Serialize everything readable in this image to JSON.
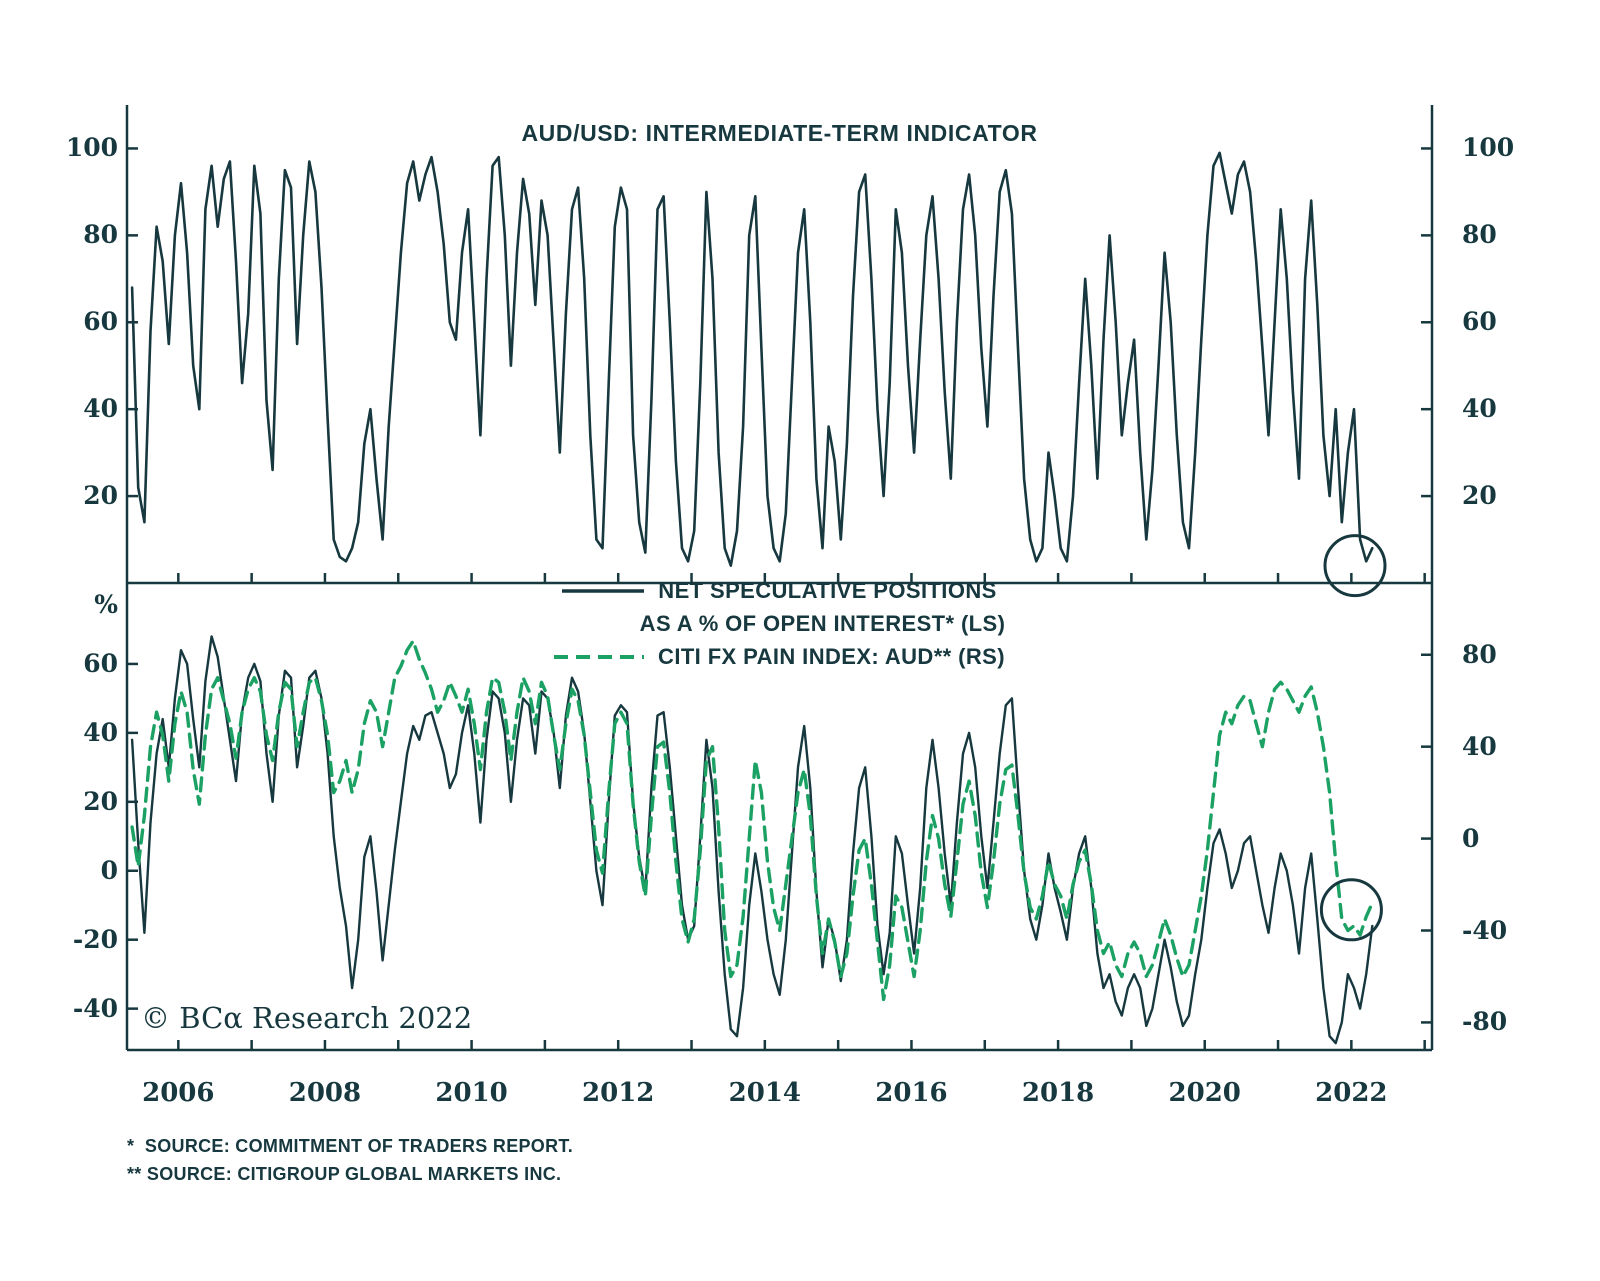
{
  "header": {
    "title": "AUD/USD: INTERMEDIATE-TERM INDICATOR"
  },
  "legend": {
    "row1": "NET SPECULATIVE POSITIONS",
    "row2": "AS A % OF OPEN INTEREST* (LS)",
    "row3": "CITI FX PAIN INDEX: AUD** (RS)"
  },
  "branding": {
    "copyright": "© BCα Research 2022"
  },
  "footnotes": {
    "line1": "*  SOURCE: COMMITMENT OF TRADERS REPORT.",
    "line2": "** SOURCE: CITIGROUP GLOBAL MARKETS INC."
  },
  "colors": {
    "dark": "#16383e",
    "green": "#1ba163"
  },
  "chart_data": [
    {
      "type": "line",
      "panel": "top",
      "title": "AUD/USD: INTERMEDIATE-TERM INDICATOR",
      "x_range": [
        2005.3,
        2023.1
      ],
      "x_ticks": [
        2006,
        2007,
        2008,
        2009,
        2010,
        2011,
        2012,
        2013,
        2014,
        2015,
        2016,
        2017,
        2018,
        2019,
        2020,
        2021,
        2022,
        2023
      ],
      "grid": false,
      "axes": {
        "left": {
          "ylim": [
            0,
            110
          ],
          "ticks": [
            20,
            40,
            60,
            80,
            100
          ]
        },
        "right": {
          "ylim": [
            0,
            110
          ],
          "ticks": [
            20,
            40,
            60,
            80,
            100
          ]
        }
      },
      "series": [
        {
          "name": "AUD/USD intermediate-term indicator",
          "axis": "left",
          "style": "solid",
          "color": "dark",
          "width": 2.6,
          "x_start": 2005.37,
          "x_step": 0.08333,
          "values": [
            68,
            22,
            14,
            58,
            82,
            74,
            55,
            80,
            92,
            76,
            50,
            40,
            86,
            96,
            82,
            93,
            97,
            74,
            46,
            62,
            96,
            85,
            42,
            26,
            70,
            95,
            91,
            55,
            80,
            97,
            90,
            68,
            38,
            10,
            6,
            5,
            8,
            14,
            32,
            40,
            24,
            10,
            36,
            56,
            76,
            92,
            97,
            88,
            94,
            98,
            90,
            78,
            60,
            56,
            76,
            86,
            60,
            34,
            70,
            96,
            98,
            80,
            50,
            76,
            93,
            85,
            64,
            88,
            80,
            55,
            30,
            62,
            86,
            91,
            70,
            34,
            10,
            8,
            46,
            82,
            91,
            86,
            34,
            14,
            7,
            42,
            86,
            89,
            60,
            28,
            8,
            5,
            12,
            46,
            90,
            70,
            30,
            8,
            4,
            12,
            36,
            80,
            89,
            54,
            20,
            8,
            5,
            16,
            46,
            76,
            86,
            60,
            24,
            8,
            36,
            28,
            10,
            32,
            66,
            90,
            94,
            70,
            40,
            20,
            46,
            86,
            76,
            50,
            30,
            56,
            80,
            89,
            70,
            44,
            24,
            60,
            86,
            94,
            80,
            54,
            36,
            66,
            90,
            95,
            85,
            54,
            24,
            10,
            5,
            8,
            30,
            20,
            8,
            5,
            20,
            46,
            70,
            50,
            24,
            56,
            80,
            60,
            34,
            46,
            56,
            30,
            10,
            26,
            50,
            76,
            60,
            34,
            14,
            8,
            30,
            56,
            80,
            96,
            99,
            92,
            85,
            94,
            97,
            90,
            74,
            54,
            34,
            60,
            86,
            70,
            44,
            24,
            70,
            88,
            64,
            34,
            20,
            40,
            14,
            30,
            40,
            10,
            5,
            8
          ]
        }
      ],
      "annotations": [
        {
          "type": "circle",
          "x": 2022.05,
          "y": 4,
          "axis": "left",
          "r": 30
        }
      ]
    },
    {
      "type": "line",
      "panel": "bottom",
      "x_range": [
        2005.3,
        2023.1
      ],
      "x_ticks": [
        2006,
        2007,
        2008,
        2009,
        2010,
        2011,
        2012,
        2013,
        2014,
        2015,
        2016,
        2017,
        2018,
        2019,
        2020,
        2021,
        2022,
        2023
      ],
      "x_tick_labels": [
        2006,
        2008,
        2010,
        2012,
        2014,
        2016,
        2018,
        2020,
        2022
      ],
      "grid": false,
      "axes": {
        "left": {
          "label": "%",
          "ylim": [
            -52,
            80
          ],
          "ticks": [
            60,
            40,
            20,
            0,
            -20,
            -40
          ]
        },
        "right": {
          "ylim": [
            -92,
            106
          ],
          "ticks": [
            80,
            40,
            0,
            -40,
            -80
          ]
        }
      },
      "series": [
        {
          "name": "NET SPECULATIVE POSITIONS AS A % OF OPEN INTEREST (LS)",
          "axis": "left",
          "style": "solid",
          "color": "dark",
          "width": 2.4,
          "x_start": 2005.37,
          "x_step": 0.08333,
          "values": [
            38,
            8,
            -18,
            14,
            34,
            44,
            30,
            50,
            64,
            60,
            44,
            30,
            55,
            68,
            62,
            50,
            38,
            26,
            46,
            56,
            60,
            55,
            34,
            20,
            45,
            58,
            56,
            30,
            42,
            56,
            58,
            50,
            34,
            10,
            -5,
            -16,
            -34,
            -20,
            4,
            10,
            -6,
            -26,
            -10,
            6,
            20,
            34,
            42,
            38,
            45,
            46,
            40,
            34,
            24,
            28,
            40,
            48,
            34,
            14,
            38,
            52,
            50,
            40,
            20,
            38,
            50,
            48,
            34,
            52,
            50,
            40,
            24,
            45,
            56,
            52,
            40,
            20,
            0,
            -10,
            20,
            45,
            48,
            46,
            20,
            4,
            -6,
            24,
            45,
            46,
            30,
            10,
            -10,
            -20,
            -16,
            10,
            38,
            24,
            -6,
            -30,
            -46,
            -48,
            -34,
            -10,
            5,
            -6,
            -20,
            -30,
            -36,
            -20,
            5,
            30,
            42,
            24,
            -6,
            -28,
            -14,
            -20,
            -32,
            -20,
            5,
            24,
            30,
            10,
            -16,
            -30,
            -18,
            10,
            5,
            -10,
            -24,
            -5,
            24,
            38,
            24,
            5,
            -10,
            14,
            34,
            40,
            30,
            10,
            -5,
            14,
            34,
            48,
            50,
            24,
            0,
            -14,
            -20,
            -10,
            5,
            -5,
            -12,
            -20,
            -5,
            5,
            10,
            -5,
            -24,
            -34,
            -30,
            -38,
            -42,
            -34,
            -30,
            -34,
            -45,
            -40,
            -30,
            -20,
            -28,
            -38,
            -45,
            -42,
            -30,
            -20,
            -5,
            8,
            12,
            5,
            -5,
            0,
            8,
            10,
            0,
            -10,
            -18,
            -5,
            5,
            0,
            -10,
            -24,
            -5,
            5,
            -14,
            -34,
            -48,
            -50,
            -44,
            -30,
            -34,
            -40,
            -30,
            -16
          ]
        },
        {
          "name": "CITI FX PAIN INDEX: AUD (RS)",
          "axis": "right",
          "style": "dashed",
          "color": "green",
          "width": 3.4,
          "x_start": 2005.37,
          "x_step": 0.08333,
          "values": [
            5,
            -12,
            10,
            40,
            55,
            45,
            25,
            50,
            64,
            55,
            30,
            15,
            45,
            65,
            70,
            60,
            50,
            35,
            55,
            65,
            70,
            64,
            45,
            34,
            55,
            68,
            65,
            40,
            55,
            68,
            70,
            60,
            45,
            20,
            25,
            34,
            20,
            30,
            50,
            60,
            55,
            40,
            55,
            70,
            75,
            82,
            86,
            78,
            72,
            65,
            55,
            60,
            68,
            62,
            55,
            65,
            50,
            30,
            55,
            70,
            68,
            55,
            34,
            55,
            70,
            64,
            50,
            68,
            62,
            45,
            30,
            50,
            65,
            60,
            45,
            20,
            -5,
            -15,
            20,
            50,
            55,
            50,
            15,
            -10,
            -25,
            10,
            40,
            42,
            20,
            -10,
            -35,
            -45,
            -35,
            -5,
            34,
            40,
            5,
            -40,
            -60,
            -55,
            -34,
            0,
            34,
            20,
            -10,
            -30,
            -40,
            -20,
            0,
            20,
            30,
            10,
            -25,
            -50,
            -35,
            -45,
            -60,
            -50,
            -25,
            -5,
            0,
            -20,
            -45,
            -70,
            -55,
            -25,
            -30,
            -45,
            -60,
            -40,
            -10,
            10,
            0,
            -20,
            -34,
            -10,
            15,
            25,
            10,
            -15,
            -30,
            -10,
            15,
            30,
            32,
            10,
            -15,
            -30,
            -35,
            -25,
            -10,
            -20,
            -25,
            -35,
            -20,
            -10,
            -5,
            -20,
            -40,
            -50,
            -45,
            -55,
            -60,
            -50,
            -45,
            -50,
            -60,
            -55,
            -45,
            -35,
            -42,
            -52,
            -60,
            -55,
            -40,
            -25,
            -5,
            20,
            45,
            55,
            50,
            58,
            62,
            60,
            50,
            40,
            55,
            65,
            68,
            65,
            60,
            55,
            62,
            66,
            55,
            40,
            20,
            -10,
            -35,
            -40,
            -38,
            -42,
            -34,
            -28
          ]
        }
      ],
      "annotations": [
        {
          "type": "circle",
          "x": 2022.0,
          "y": -31,
          "axis": "right",
          "r": 30
        }
      ]
    }
  ]
}
